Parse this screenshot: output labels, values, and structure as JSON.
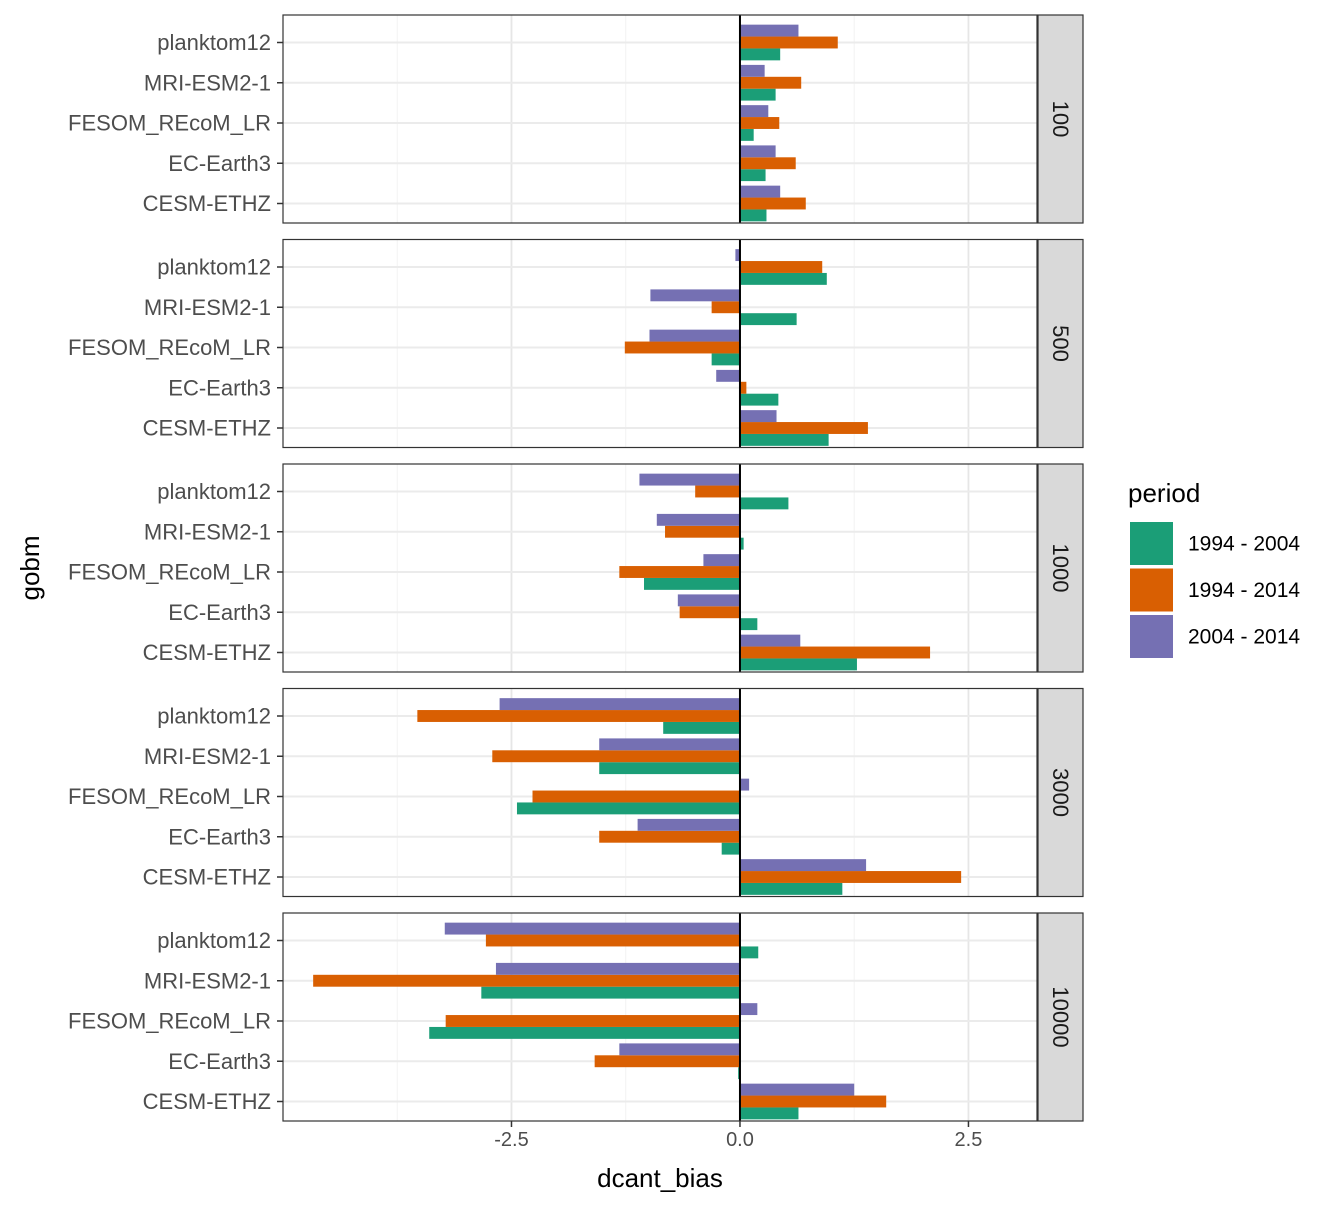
{
  "chart_data": {
    "type": "bar",
    "orientation": "horizontal",
    "facet_by": "depth",
    "xlabel": "dcant_bias",
    "ylabel": "gobm",
    "xlim": [
      -5.0,
      3.25
    ],
    "x_ticks": [
      -2.5,
      0.0,
      2.5
    ],
    "x_tick_labels": [
      "-2.5",
      "0.0",
      "2.5"
    ],
    "grid": true,
    "legend": {
      "title": "period",
      "position": "right"
    },
    "categories": [
      "planktom12",
      "MRI-ESM2-1",
      "FESOM_REcoM_LR",
      "EC-Earth3",
      "CESM-ETHZ"
    ],
    "series": [
      {
        "name": "1994 - 2004",
        "color": "#1b9e77"
      },
      {
        "name": "1994 - 2014",
        "color": "#d95f02"
      },
      {
        "name": "2004 - 2014",
        "color": "#7570b3"
      }
    ],
    "facets": [
      {
        "label": "100",
        "values": [
          [
            0.44,
            1.07,
            0.64
          ],
          [
            0.39,
            0.67,
            0.27
          ],
          [
            0.15,
            0.43,
            0.31
          ],
          [
            0.28,
            0.61,
            0.39
          ],
          [
            0.29,
            0.72,
            0.44
          ]
        ]
      },
      {
        "label": "500",
        "values": [
          [
            0.95,
            0.9,
            -0.05
          ],
          [
            0.62,
            -0.31,
            -0.98
          ],
          [
            -0.31,
            -1.26,
            -0.99
          ],
          [
            0.42,
            0.07,
            -0.26
          ],
          [
            0.97,
            1.4,
            0.4
          ]
        ]
      },
      {
        "label": "1000",
        "values": [
          [
            0.53,
            -0.49,
            -1.1
          ],
          [
            0.04,
            -0.82,
            -0.91
          ],
          [
            -1.05,
            -1.32,
            -0.4
          ],
          [
            0.19,
            -0.66,
            -0.68
          ],
          [
            1.28,
            2.08,
            0.66
          ]
        ]
      },
      {
        "label": "3000",
        "values": [
          [
            -0.84,
            -3.53,
            -2.63
          ],
          [
            -1.54,
            -2.71,
            -1.54
          ],
          [
            -2.44,
            -2.27,
            0.1
          ],
          [
            -0.2,
            -1.54,
            -1.12
          ],
          [
            1.12,
            2.42,
            1.38
          ]
        ]
      },
      {
        "label": "10000",
        "values": [
          [
            0.2,
            -2.78,
            -3.23
          ],
          [
            -2.83,
            -4.67,
            -2.67
          ],
          [
            -3.4,
            -3.22,
            0.19
          ],
          [
            -0.02,
            -1.59,
            -1.32
          ],
          [
            0.64,
            1.6,
            1.25
          ]
        ]
      }
    ]
  }
}
